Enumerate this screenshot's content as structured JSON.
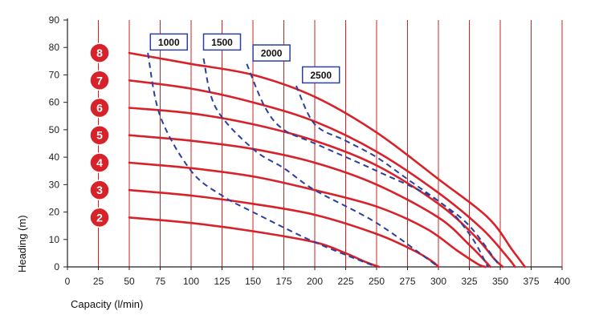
{
  "chart_data": {
    "type": "line",
    "title": "",
    "xlabel": "Capacity (l/min)",
    "ylabel": "Heading (m)",
    "xlim": [
      0,
      400
    ],
    "ylim": [
      0,
      90
    ],
    "x_ticks": [
      0,
      25,
      50,
      75,
      100,
      125,
      150,
      175,
      200,
      225,
      250,
      275,
      300,
      325,
      350,
      375,
      400
    ],
    "y_ticks": [
      0,
      10,
      20,
      30,
      40,
      50,
      60,
      70,
      80,
      90
    ],
    "grid": "vertical",
    "colors": {
      "pressure_curve": "#d8222a",
      "speed_curve": "#2b3f9e",
      "grid": "#cc2222",
      "badge_fill": "#d8222a",
      "label_border": "#2b3f9e"
    },
    "pressure_series": [
      {
        "name": "8",
        "x": [
          50,
          100,
          150,
          200,
          250,
          300,
          340,
          360,
          370
        ],
        "y": [
          78,
          74,
          70,
          62,
          49,
          32,
          18,
          6,
          0
        ]
      },
      {
        "name": "7",
        "x": [
          50,
          100,
          150,
          200,
          250,
          300,
          335,
          355,
          362
        ],
        "y": [
          68,
          65,
          60,
          53,
          42,
          27,
          14,
          4,
          0
        ]
      },
      {
        "name": "6",
        "x": [
          50,
          100,
          150,
          200,
          250,
          300,
          330,
          345,
          352
        ],
        "y": [
          58,
          56,
          52,
          46,
          37,
          23,
          11,
          3,
          0
        ]
      },
      {
        "name": "5",
        "x": [
          50,
          100,
          150,
          200,
          250,
          300,
          325,
          338,
          342
        ],
        "y": [
          48,
          46,
          43,
          38,
          30,
          18,
          8,
          2,
          0
        ]
      },
      {
        "name": "4",
        "x": [
          50,
          100,
          150,
          200,
          250,
          290,
          315,
          332,
          338
        ],
        "y": [
          38,
          36,
          33,
          28,
          22,
          14,
          6,
          1,
          0
        ]
      },
      {
        "name": "3",
        "x": [
          50,
          100,
          150,
          200,
          250,
          280,
          295,
          300
        ],
        "y": [
          28,
          26,
          23,
          19,
          12,
          6,
          2,
          0
        ]
      },
      {
        "name": "2",
        "x": [
          50,
          100,
          150,
          200,
          225,
          240,
          252
        ],
        "y": [
          18,
          16,
          13,
          9,
          5,
          2,
          0
        ]
      }
    ],
    "speed_series": [
      {
        "name": "1000",
        "x": [
          65,
          75,
          100,
          125,
          150,
          200,
          250
        ],
        "y": [
          78,
          55,
          35,
          26,
          20,
          9,
          0
        ]
      },
      {
        "name": "1500",
        "x": [
          110,
          120,
          150,
          175,
          200,
          250,
          300
        ],
        "y": [
          76,
          58,
          43,
          36,
          28,
          16,
          0
        ]
      },
      {
        "name": "2000",
        "x": [
          145,
          160,
          175,
          200,
          250,
          300,
          325,
          340
        ],
        "y": [
          74,
          58,
          50,
          45,
          35,
          24,
          12,
          0
        ]
      },
      {
        "name": "2500",
        "x": [
          185,
          200,
          225,
          250,
          275,
          300,
          325,
          350
        ],
        "y": [
          66,
          52,
          46,
          40,
          32,
          24,
          15,
          0
        ]
      }
    ],
    "speed_label_positions": [
      {
        "name": "1000",
        "x": 82,
        "y": 82
      },
      {
        "name": "1500",
        "x": 125,
        "y": 82
      },
      {
        "name": "2000",
        "x": 165,
        "y": 78
      },
      {
        "name": "2500",
        "x": 205,
        "y": 70
      }
    ]
  }
}
